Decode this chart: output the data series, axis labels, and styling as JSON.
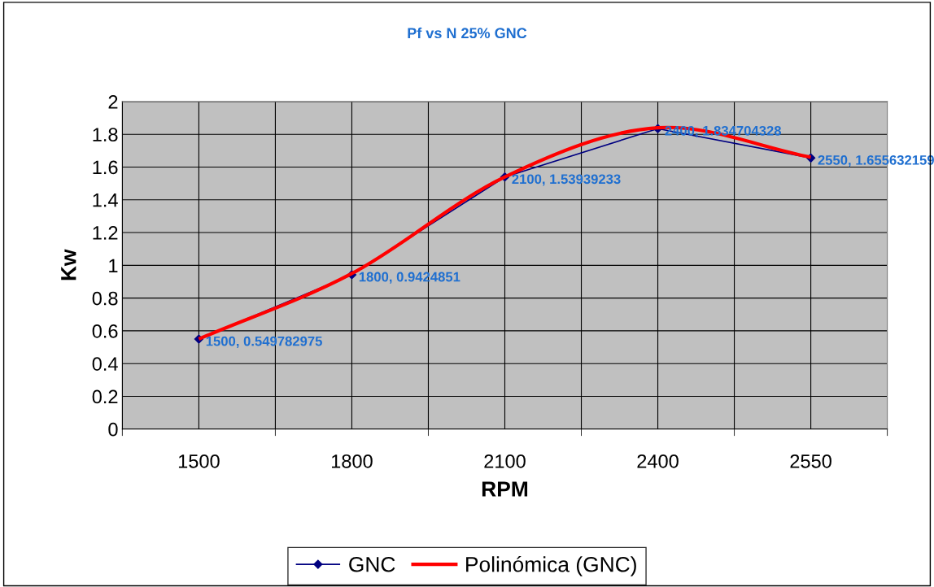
{
  "chart_data": {
    "type": "line",
    "title": "Pf vs N 25% GNC",
    "xlabel": "RPM",
    "ylabel": "Kw",
    "categories": [
      "1500",
      "1800",
      "2100",
      "2400",
      "2550"
    ],
    "series": [
      {
        "name": "GNC",
        "color": "#000080",
        "values": [
          0.549782975,
          0.9424851,
          1.53939233,
          1.834704328,
          1.655632159
        ],
        "marker": "diamond",
        "value_labels": [
          "1500, 0.549782975",
          "1800, 0.9424851",
          "2100, 1.53939233",
          "2400, 1.834704328",
          "2550, 1.655632159"
        ]
      },
      {
        "name": "Polinómica (GNC)",
        "color": "#ff0000",
        "marker": "none",
        "values": [
          0.55,
          0.95,
          1.54,
          1.84,
          1.66
        ]
      }
    ],
    "ylim": [
      0,
      2
    ],
    "yticks": [
      0,
      0.2,
      0.4,
      0.6,
      0.8,
      1,
      1.2,
      1.4,
      1.6,
      1.8,
      2
    ],
    "grid": true,
    "legend": "bottom",
    "line_style": "solid"
  }
}
